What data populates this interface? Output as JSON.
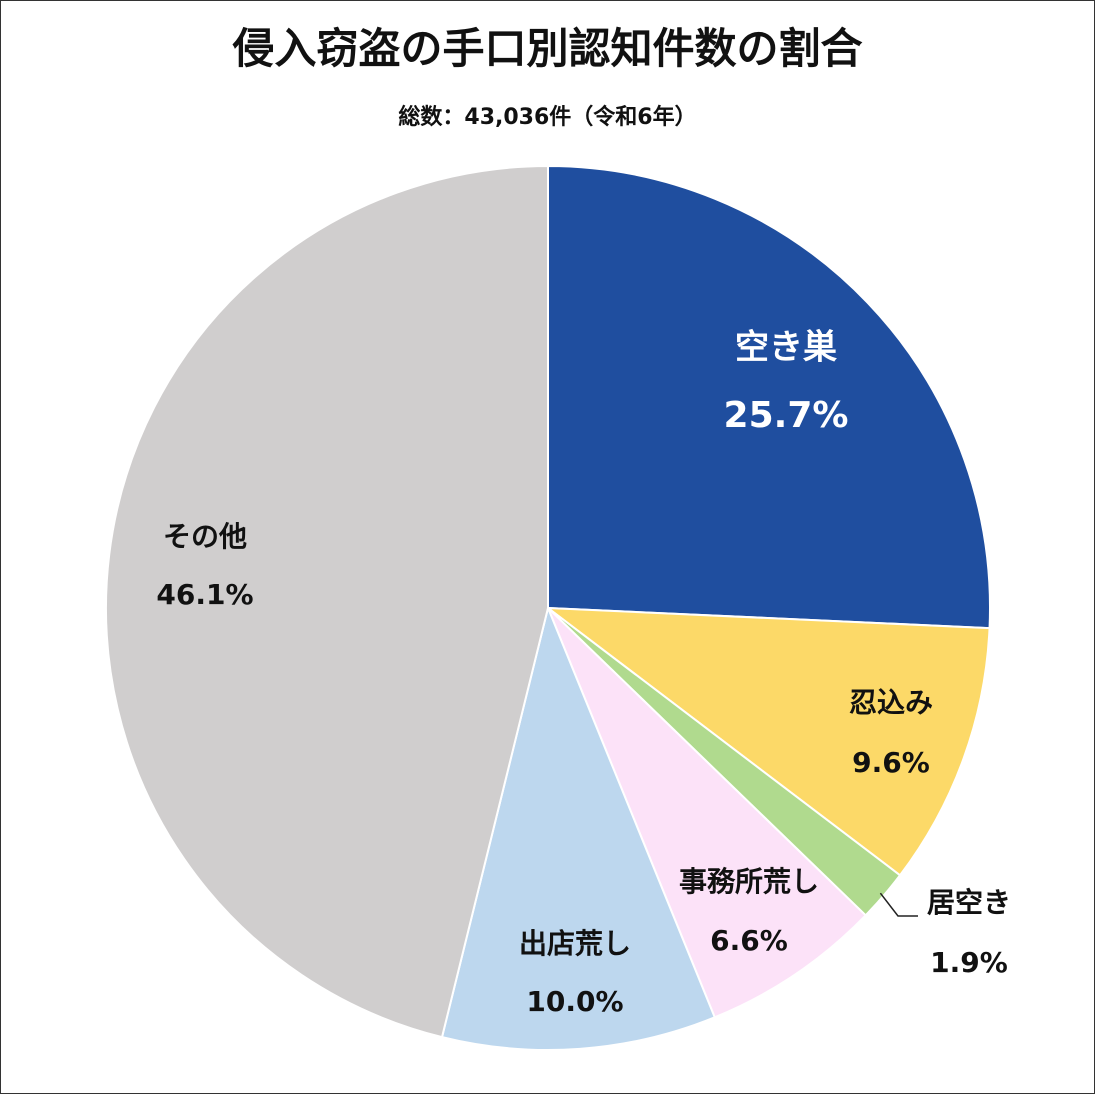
{
  "chart_data": {
    "type": "pie",
    "title": "侵入窃盗の手口別認知件数の割合",
    "subtitle": "総数：43,036件（令和6年）",
    "slices": [
      {
        "label": "空き巣",
        "value": 25.7,
        "value_text": "25.7%",
        "color": "#1f4e9f",
        "text_color": "#ffffff"
      },
      {
        "label": "忍込み",
        "value": 9.6,
        "value_text": "9.6%",
        "color": "#fcd968",
        "text_color": "#111111"
      },
      {
        "label": "居空き",
        "value": 1.9,
        "value_text": "1.9%",
        "color": "#b0da8e",
        "text_color": "#111111"
      },
      {
        "label": "事務所荒し",
        "value": 6.6,
        "value_text": "6.6%",
        "color": "#fce2f8",
        "text_color": "#111111"
      },
      {
        "label": "出店荒し",
        "value": 10.0,
        "value_text": "10.0%",
        "color": "#bdd7ee",
        "text_color": "#111111"
      },
      {
        "label": "その他",
        "value": 46.1,
        "value_text": "46.1%",
        "color": "#d0cece",
        "text_color": "#111111"
      }
    ],
    "direction": "clockwise from top"
  }
}
